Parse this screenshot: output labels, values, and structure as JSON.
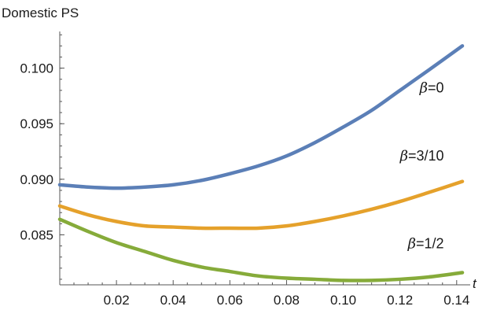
{
  "chart_data": {
    "type": "line",
    "ylabel": "Domestic PS",
    "xlabel": "t",
    "xlim": [
      0.0,
      0.142
    ],
    "ylim": [
      0.0805,
      0.1033
    ],
    "x_ticks": [
      0.02,
      0.04,
      0.06,
      0.08,
      0.1,
      0.12,
      0.14
    ],
    "x_tick_labels": [
      "0.02",
      "0.04",
      "0.06",
      "0.08",
      "0.10",
      "0.12",
      "0.14"
    ],
    "y_ticks": [
      0.085,
      0.09,
      0.095,
      0.1
    ],
    "y_tick_labels": [
      "0.085",
      "0.090",
      "0.095",
      "0.100"
    ],
    "grid": false,
    "legend": "none",
    "series": [
      {
        "name": "β=0",
        "color": "#5b7fb7",
        "x": [
          0.0,
          0.01,
          0.02,
          0.03,
          0.04,
          0.05,
          0.06,
          0.07,
          0.08,
          0.09,
          0.1,
          0.11,
          0.12,
          0.13,
          0.142
        ],
        "y": [
          0.0895,
          0.0893,
          0.0892,
          0.0893,
          0.0895,
          0.0899,
          0.0905,
          0.0912,
          0.0921,
          0.0933,
          0.0947,
          0.0962,
          0.098,
          0.0998,
          0.102
        ]
      },
      {
        "name": "β=3/10",
        "color": "#e5a12b",
        "x": [
          0.0,
          0.01,
          0.02,
          0.03,
          0.04,
          0.05,
          0.06,
          0.07,
          0.08,
          0.09,
          0.1,
          0.11,
          0.12,
          0.13,
          0.142
        ],
        "y": [
          0.0876,
          0.0868,
          0.0862,
          0.0858,
          0.0857,
          0.0856,
          0.0856,
          0.0856,
          0.0858,
          0.0862,
          0.0867,
          0.0873,
          0.088,
          0.0888,
          0.0898
        ]
      },
      {
        "name": "β=1/2",
        "color": "#86ab3a",
        "x": [
          0.0,
          0.01,
          0.02,
          0.03,
          0.04,
          0.05,
          0.06,
          0.07,
          0.08,
          0.09,
          0.1,
          0.11,
          0.12,
          0.13,
          0.142
        ],
        "y": [
          0.0864,
          0.0853,
          0.0843,
          0.0835,
          0.0827,
          0.0821,
          0.0817,
          0.0813,
          0.0811,
          0.081,
          0.0809,
          0.0809,
          0.081,
          0.0812,
          0.0816
        ]
      }
    ]
  }
}
